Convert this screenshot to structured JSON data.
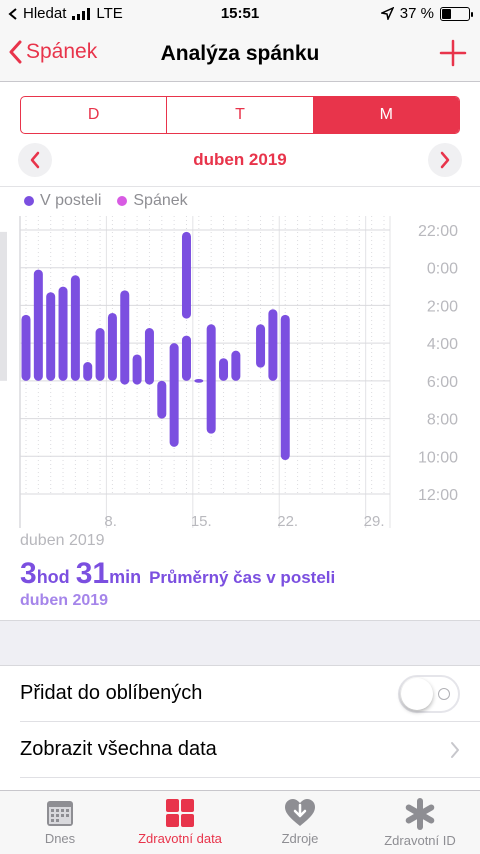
{
  "status": {
    "carrier": "Hledat",
    "network": "LTE",
    "time": "15:51",
    "battery": "37 %",
    "battery_level": 0.37
  },
  "nav": {
    "back_label": "Spánek",
    "title": "Analýza spánku"
  },
  "segments": [
    {
      "label": "D",
      "active": false
    },
    {
      "label": "T",
      "active": false
    },
    {
      "label": "M",
      "active": true
    }
  ],
  "month_label": "duben 2019",
  "legend": [
    {
      "label": "V posteli",
      "color": "#7b4fe0"
    },
    {
      "label": "Spánek",
      "color": "#d85be3"
    }
  ],
  "chart_data": {
    "type": "bar",
    "description_type": "floating range bars (bedtime start/end per day)",
    "y_tick_labels": [
      "22:00",
      "0:00",
      "2:00",
      "4:00",
      "6:00",
      "8:00",
      "10:00",
      "12:00"
    ],
    "y_range_hours": [
      22,
      36
    ],
    "x_tick_labels": [
      "8.",
      "15.",
      "22.",
      "29."
    ],
    "x_range_days": [
      1,
      30
    ],
    "series": [
      {
        "name": "V posteli",
        "color": "#7b4fe0",
        "bars": [
          {
            "day": 1,
            "start": 26.5,
            "end": 30.0
          },
          {
            "day": 2,
            "start": 24.1,
            "end": 30.0
          },
          {
            "day": 3,
            "start": 25.3,
            "end": 30.0
          },
          {
            "day": 4,
            "start": 25.0,
            "end": 30.0
          },
          {
            "day": 5,
            "start": 24.4,
            "end": 30.0
          },
          {
            "day": 6,
            "start": 29.0,
            "end": 30.0
          },
          {
            "day": 7,
            "start": 27.2,
            "end": 30.0
          },
          {
            "day": 8,
            "start": 26.4,
            "end": 30.0
          },
          {
            "day": 9,
            "start": 25.2,
            "end": 30.2
          },
          {
            "day": 10,
            "start": 28.6,
            "end": 30.2
          },
          {
            "day": 11,
            "start": 27.2,
            "end": 30.2
          },
          {
            "day": 12,
            "start": 30.0,
            "end": 32.0
          },
          {
            "day": 13,
            "start": 28.0,
            "end": 33.5
          },
          {
            "day": 14,
            "start": 22.1,
            "end": 26.7
          },
          {
            "day": 14,
            "start": 27.6,
            "end": 30.0
          },
          {
            "day": 15,
            "start": 29.9,
            "end": 30.1
          },
          {
            "day": 16,
            "start": 27.0,
            "end": 32.8
          },
          {
            "day": 17,
            "start": 28.8,
            "end": 30.0
          },
          {
            "day": 18,
            "start": 28.4,
            "end": 30.0
          },
          {
            "day": 20,
            "start": 27.0,
            "end": 29.3
          },
          {
            "day": 21,
            "start": 26.2,
            "end": 30.0
          },
          {
            "day": 22,
            "start": 26.5,
            "end": 34.2
          }
        ]
      }
    ]
  },
  "summary": {
    "range_label": "duben 2019",
    "hours": "3",
    "hours_unit": "hod",
    "minutes": "31",
    "minutes_unit": "min",
    "caption": "Průměrný čas v posteli",
    "month": "duben 2019"
  },
  "rows": {
    "favorite_label": "Přidat do oblíbených",
    "favorite_on": false,
    "all_data_label": "Zobrazit všechna data"
  },
  "tabs": [
    {
      "label": "Dnes",
      "icon": "calendar-icon",
      "active": false
    },
    {
      "label": "Zdravotní data",
      "icon": "grid-icon",
      "active": true
    },
    {
      "label": "Zdroje",
      "icon": "heart-download-icon",
      "active": false
    },
    {
      "label": "Zdravotní ID",
      "icon": "asterisk-icon",
      "active": false
    }
  ]
}
